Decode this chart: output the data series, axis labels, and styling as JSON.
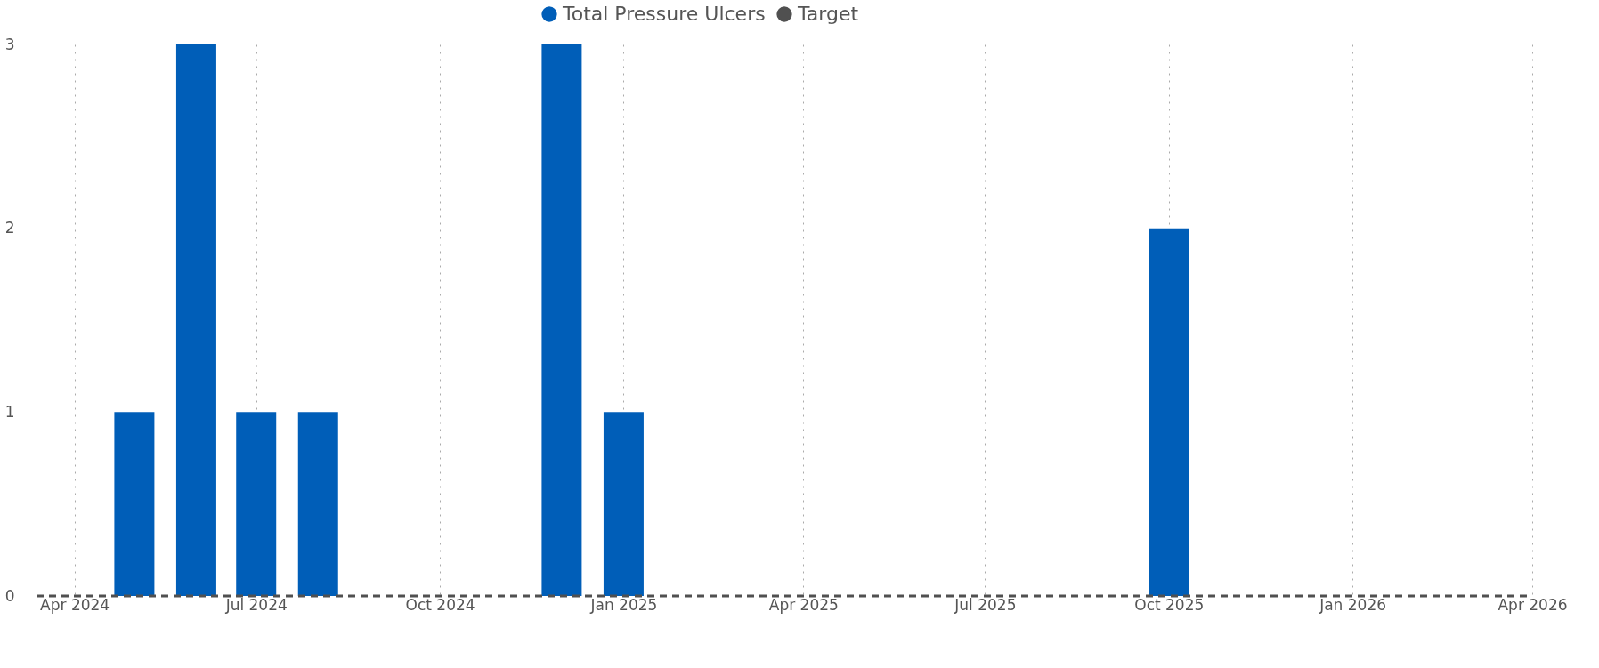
{
  "chart_data": {
    "type": "bar",
    "x": [
      "2024-05",
      "2024-06",
      "2024-07",
      "2024-08",
      "2024-12",
      "2025-01",
      "2025-10"
    ],
    "series": [
      {
        "name": "Total Pressure Ulcers",
        "color": "#005eb8",
        "values": [
          1,
          3,
          1,
          1,
          3,
          1,
          2
        ]
      },
      {
        "name": "Target",
        "type": "line",
        "color": "#505050",
        "line_style": "dashed",
        "x": [
          "2024-03-13",
          "2026-04-01"
        ],
        "values": [
          0,
          0
        ]
      }
    ],
    "xlim": [
      "2024-03-13",
      "2026-04-01"
    ],
    "xticks": [
      {
        "value": "2024-04",
        "label": "Apr 2024"
      },
      {
        "value": "2024-07",
        "label": "Jul 2024"
      },
      {
        "value": "2024-10",
        "label": "Oct 2024"
      },
      {
        "value": "2025-01",
        "label": "Jan 2025"
      },
      {
        "value": "2025-04",
        "label": "Apr 2025"
      },
      {
        "value": "2025-07",
        "label": "Jul 2025"
      },
      {
        "value": "2025-10",
        "label": "Oct 2025"
      },
      {
        "value": "2026-01",
        "label": "Jan 2026"
      },
      {
        "value": "2026-04",
        "label": "Apr 2026"
      }
    ],
    "ylim": [
      0,
      3
    ],
    "yticks": [
      0,
      1,
      2,
      3
    ],
    "grid": "x",
    "legend": "top"
  }
}
